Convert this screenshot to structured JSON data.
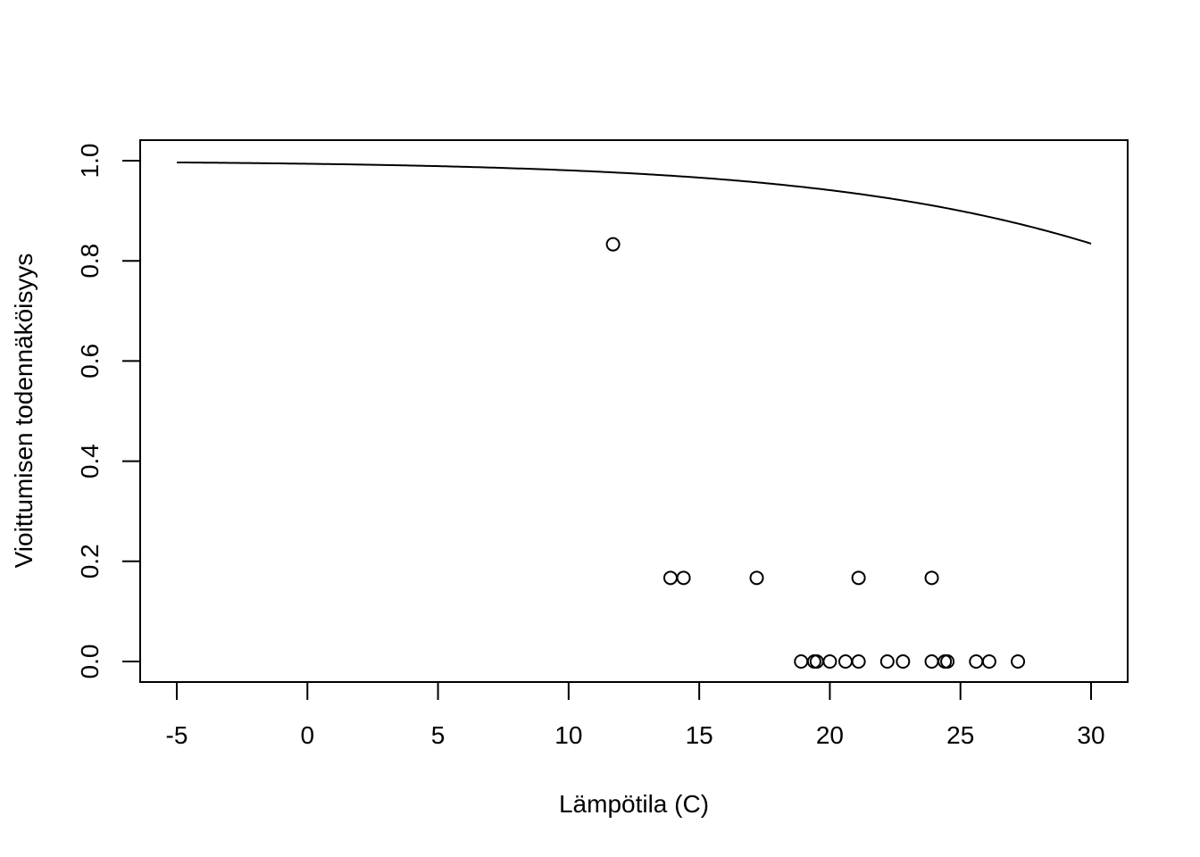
{
  "chart_data": {
    "type": "scatter",
    "xlabel": "Lämpötila (C)",
    "ylabel": "Vioittumisen todennäköisyys",
    "xlim": [
      -5,
      30
    ],
    "ylim": [
      0,
      1
    ],
    "x_ticks": [
      -5,
      0,
      5,
      10,
      15,
      20,
      25,
      30
    ],
    "x_tick_labels": [
      "-5",
      "0",
      "5",
      "10",
      "15",
      "20",
      "25",
      "30"
    ],
    "y_ticks": [
      0,
      0.2,
      0.4,
      0.6,
      0.8,
      1
    ],
    "y_tick_labels": [
      "0.0",
      "0.2",
      "0.4",
      "0.6",
      "0.8",
      "1.0"
    ],
    "grid": false,
    "series": [
      {
        "kind": "points",
        "marker": "open-circle",
        "points": [
          {
            "x": 11.7,
            "y": 0.833
          },
          {
            "x": 13.9,
            "y": 0.167
          },
          {
            "x": 14.4,
            "y": 0.167
          },
          {
            "x": 17.2,
            "y": 0.167
          },
          {
            "x": 21.1,
            "y": 0.167
          },
          {
            "x": 23.9,
            "y": 0.167
          },
          {
            "x": 18.9,
            "y": 0
          },
          {
            "x": 19.4,
            "y": 0
          },
          {
            "x": 19.5,
            "y": 0
          },
          {
            "x": 20.0,
            "y": 0
          },
          {
            "x": 20.6,
            "y": 0
          },
          {
            "x": 21.1,
            "y": 0
          },
          {
            "x": 22.2,
            "y": 0
          },
          {
            "x": 22.8,
            "y": 0
          },
          {
            "x": 23.9,
            "y": 0
          },
          {
            "x": 24.4,
            "y": 0
          },
          {
            "x": 24.5,
            "y": 0
          },
          {
            "x": 25.6,
            "y": 0
          },
          {
            "x": 26.1,
            "y": 0
          },
          {
            "x": 27.2,
            "y": 0
          }
        ]
      },
      {
        "kind": "curve",
        "style": "line",
        "logistic_intercept": 5.085,
        "logistic_slope": -0.1156,
        "x_from": -5,
        "x_to": 30
      }
    ]
  }
}
